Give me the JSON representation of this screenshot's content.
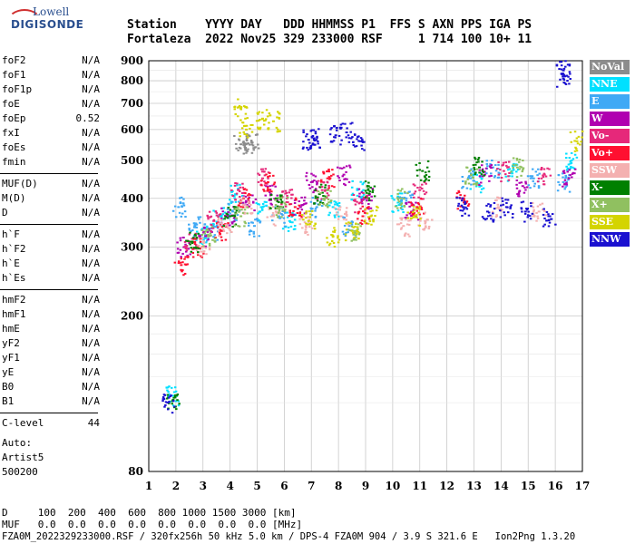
{
  "logo": {
    "top": "Lowell",
    "bottom": "DIGISONDE"
  },
  "header": {
    "line1": "Station    YYYY DAY   DDD HHMMSS P1  FFS S AXN PPS IGA PS",
    "line2": "Fortaleza  2022 Nov25 329 233000 RSF     1 714 100 10+ 11"
  },
  "params_group1": [
    {
      "name": "foF2",
      "value": "N/A"
    },
    {
      "name": "foF1",
      "value": "N/A"
    },
    {
      "name": "foF1p",
      "value": "N/A"
    },
    {
      "name": "foE",
      "value": "N/A"
    },
    {
      "name": "foEp",
      "value": "0.52"
    },
    {
      "name": "fxI",
      "value": "N/A"
    },
    {
      "name": "foEs",
      "value": "N/A"
    },
    {
      "name": "fmin",
      "value": "N/A"
    }
  ],
  "params_group2": [
    {
      "name": "MUF(D)",
      "value": "N/A"
    },
    {
      "name": "M(D)",
      "value": "N/A"
    },
    {
      "name": "D",
      "value": "N/A"
    }
  ],
  "params_group3": [
    {
      "name": "h`F",
      "value": "N/A"
    },
    {
      "name": "h`F2",
      "value": "N/A"
    },
    {
      "name": "h`E",
      "value": "N/A"
    },
    {
      "name": "h`Es",
      "value": "N/A"
    }
  ],
  "params_group4": [
    {
      "name": "hmF2",
      "value": "N/A"
    },
    {
      "name": "hmF1",
      "value": "N/A"
    },
    {
      "name": "hmE",
      "value": "N/A"
    },
    {
      "name": "yF2",
      "value": "N/A"
    },
    {
      "name": "yF1",
      "value": "N/A"
    },
    {
      "name": "yE",
      "value": "N/A"
    },
    {
      "name": "B0",
      "value": "N/A"
    },
    {
      "name": "B1",
      "value": "N/A"
    }
  ],
  "clevel": {
    "name": "C-level",
    "value": "44"
  },
  "auto": [
    "Auto:",
    "Artist5",
    "500200"
  ],
  "footer": {
    "d_line": "D     100  200  400  600  800 1000 1500 3000 [km]",
    "muf_line": "MUF   0.0  0.0  0.0  0.0  0.0  0.0  0.0  0.0 [MHz]",
    "info_line": "FZA0M_2022329233000.RSF / 320fx256h 50 kHz 5.0 km / DPS-4 FZA0M 904 / 3.9 S 321.6 E   Ion2Png 1.3.20"
  },
  "legend": [
    {
      "label": "NoVal",
      "color": "#8c8c8c"
    },
    {
      "label": "NNE",
      "color": "#00e0ff"
    },
    {
      "label": "E",
      "color": "#3fa9f5"
    },
    {
      "label": "W",
      "color": "#b000b0"
    },
    {
      "label": "Vo-",
      "color": "#e6287a"
    },
    {
      "label": "Vo+",
      "color": "#ff1030"
    },
    {
      "label": "SSW",
      "color": "#f4b0b0"
    },
    {
      "label": "X-",
      "color": "#008000"
    },
    {
      "label": "X+",
      "color": "#90c060"
    },
    {
      "label": "SSE",
      "color": "#d4d400"
    },
    {
      "label": "NNW",
      "color": "#1a10d0"
    }
  ],
  "chart_data": {
    "type": "scatter",
    "x_ticks": [
      1,
      2,
      3,
      4,
      5,
      6,
      7,
      8,
      9,
      10,
      11,
      12,
      13,
      14,
      15,
      16,
      17
    ],
    "y_ticks": [
      80,
      200,
      300,
      400,
      500,
      600,
      700,
      800,
      900
    ],
    "xlim": [
      1,
      17
    ],
    "ylim": [
      80,
      900
    ],
    "y_scale": "log",
    "grid": true,
    "series": [
      {
        "name": "NoVal",
        "points": [
          [
            4.4,
            550
          ],
          [
            4.6,
            552
          ],
          [
            4.8,
            556
          ]
        ]
      },
      {
        "name": "NNE",
        "points": [
          [
            1.9,
            125
          ],
          [
            2.9,
            320
          ],
          [
            3.6,
            360
          ],
          [
            4.2,
            410
          ],
          [
            5.1,
            370
          ],
          [
            6.2,
            350
          ],
          [
            7.8,
            380
          ],
          [
            8.7,
            420
          ],
          [
            10.2,
            390
          ],
          [
            13.1,
            440
          ],
          [
            14.4,
            470
          ],
          [
            16.6,
            500
          ]
        ]
      },
      {
        "name": "E",
        "points": [
          [
            2.1,
            380
          ],
          [
            2.7,
            340
          ],
          [
            3.3,
            330
          ],
          [
            4.1,
            370
          ],
          [
            4.9,
            340
          ],
          [
            5.8,
            360
          ],
          [
            7.2,
            380
          ],
          [
            8.4,
            340
          ],
          [
            10.5,
            400
          ],
          [
            12.8,
            450
          ],
          [
            13.7,
            480
          ],
          [
            15.2,
            450
          ],
          [
            16.3,
            440
          ]
        ]
      },
      {
        "name": "W",
        "points": [
          [
            2.3,
            300
          ],
          [
            3.1,
            320
          ],
          [
            3.9,
            360
          ],
          [
            4.7,
            390
          ],
          [
            5.5,
            410
          ],
          [
            6.6,
            380
          ],
          [
            7.0,
            440
          ],
          [
            8.2,
            460
          ],
          [
            9.0,
            400
          ],
          [
            10.7,
            370
          ],
          [
            13.4,
            460
          ],
          [
            14.8,
            430
          ],
          [
            16.5,
            450
          ]
        ]
      },
      {
        "name": "Vo-",
        "points": [
          [
            2.5,
            310
          ],
          [
            3.4,
            350
          ],
          [
            4.3,
            420
          ],
          [
            5.2,
            450
          ],
          [
            6.1,
            400
          ],
          [
            7.4,
            420
          ],
          [
            8.8,
            390
          ],
          [
            11.0,
            420
          ],
          [
            14.1,
            470
          ],
          [
            15.6,
            460
          ]
        ]
      },
      {
        "name": "Vo+",
        "points": [
          [
            2.2,
            270
          ],
          [
            2.8,
            300
          ],
          [
            3.7,
            330
          ],
          [
            4.5,
            400
          ],
          [
            5.4,
            440
          ],
          [
            6.4,
            380
          ],
          [
            7.6,
            450
          ],
          [
            8.9,
            360
          ],
          [
            10.9,
            380
          ],
          [
            12.6,
            400
          ]
        ]
      },
      {
        "name": "SSW",
        "points": [
          [
            3.0,
            300
          ],
          [
            3.8,
            340
          ],
          [
            4.6,
            380
          ],
          [
            5.6,
            360
          ],
          [
            6.8,
            340
          ],
          [
            8.1,
            360
          ],
          [
            10.4,
            340
          ],
          [
            11.2,
            350
          ],
          [
            13.9,
            380
          ],
          [
            15.4,
            370
          ]
        ]
      },
      {
        "name": "X-",
        "points": [
          [
            1.9,
            122
          ],
          [
            2.6,
            310
          ],
          [
            4.0,
            360
          ],
          [
            5.7,
            400
          ],
          [
            7.3,
            410
          ],
          [
            9.1,
            420
          ],
          [
            11.1,
            470
          ],
          [
            13.2,
            480
          ]
        ]
      },
      {
        "name": "X+",
        "points": [
          [
            3.2,
            320
          ],
          [
            4.4,
            360
          ],
          [
            5.9,
            380
          ],
          [
            7.5,
            400
          ],
          [
            8.6,
            330
          ],
          [
            10.3,
            400
          ],
          [
            12.9,
            460
          ],
          [
            14.6,
            480
          ]
        ]
      },
      {
        "name": "SSE",
        "points": [
          [
            4.4,
            680
          ],
          [
            4.6,
            600
          ],
          [
            5.2,
            640
          ],
          [
            5.6,
            630
          ],
          [
            6.9,
            350
          ],
          [
            7.8,
            320
          ],
          [
            8.5,
            330
          ],
          [
            9.2,
            360
          ],
          [
            10.8,
            360
          ],
          [
            16.8,
            560
          ]
        ]
      },
      {
        "name": "NNW",
        "points": [
          [
            1.7,
            120
          ],
          [
            6.9,
            565
          ],
          [
            7.1,
            570
          ],
          [
            7.9,
            580
          ],
          [
            8.3,
            590
          ],
          [
            8.8,
            560
          ],
          [
            12.6,
            380
          ],
          [
            13.5,
            370
          ],
          [
            14.2,
            380
          ],
          [
            14.9,
            370
          ],
          [
            15.8,
            360
          ],
          [
            16.3,
            850
          ],
          [
            16.3,
            810
          ]
        ]
      }
    ]
  }
}
